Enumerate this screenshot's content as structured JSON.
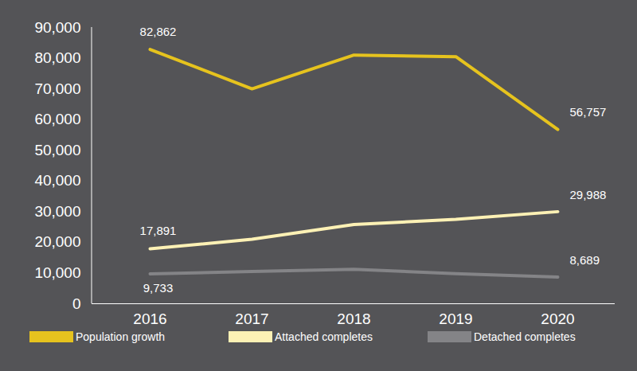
{
  "chart_data": {
    "type": "line",
    "categories": [
      "2016",
      "2017",
      "2018",
      "2019",
      "2020"
    ],
    "series": [
      {
        "name": "Population growth",
        "color": "#e6c31e",
        "values": [
          82862,
          70000,
          81000,
          80500,
          56757
        ],
        "value_labels": [
          "82,862",
          null,
          null,
          null,
          "56,757"
        ]
      },
      {
        "name": "Attached completes",
        "color": "#fdf1b5",
        "values": [
          17891,
          21000,
          25800,
          27500,
          29988
        ],
        "value_labels": [
          "17,891",
          null,
          null,
          null,
          "29,988"
        ]
      },
      {
        "name": "Detached completes",
        "color": "#848487",
        "values": [
          9733,
          10500,
          11200,
          9800,
          8689
        ],
        "value_labels": [
          "9,733",
          null,
          null,
          null,
          "8,689"
        ]
      }
    ],
    "ylim": [
      0,
      90000
    ],
    "yticks": [
      0,
      {
        "value": 10000,
        "label": "10,000"
      },
      {
        "value": 20000,
        "label": "20,000"
      },
      {
        "value": 30000,
        "label": "30,000"
      },
      {
        "value": 40000,
        "label": "40,000"
      },
      {
        "value": 50000,
        "label": "50,000"
      },
      {
        "value": 60000,
        "label": "60,000"
      },
      {
        "value": 70000,
        "label": "70,000"
      },
      {
        "value": 80000,
        "label": "80,000"
      },
      {
        "value": 90000,
        "label": "90,000"
      }
    ],
    "data_labels": true,
    "legend": "bottom",
    "grid": false
  }
}
